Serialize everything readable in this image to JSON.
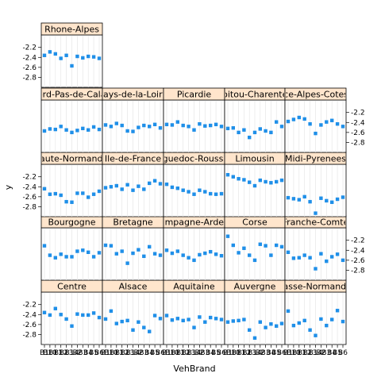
{
  "chart_data": {
    "type": "scatter",
    "xlabel": "VehBrand",
    "ylabel": "y",
    "ylim": [
      -3.0,
      -1.95
    ],
    "yticks": [
      -2.2,
      -2.4,
      -2.6,
      -2.8
    ],
    "ytick_labels": [
      "-2.2",
      "-2.4",
      "-2.6",
      "-2.8"
    ],
    "x": [
      "B1",
      "B10",
      "B11",
      "B12",
      "B13",
      "B14",
      "B2",
      "B3",
      "B4",
      "B5",
      "B6"
    ],
    "x_tick_labels": [
      "B1",
      "B10",
      "B11",
      "B12",
      "B13",
      "B14",
      "B2",
      "B3",
      "B4",
      "B5",
      "B6"
    ],
    "point_color": "#1f8fe8",
    "strip_color": "#ffe5cc",
    "layout": {
      "columns": 5,
      "rows": 5
    },
    "panels": [
      {
        "name": "Centre",
        "values": [
          -2.36,
          -2.41,
          -2.28,
          -2.4,
          -2.49,
          -2.63,
          -2.39,
          -2.41,
          -2.41,
          -2.37,
          -2.46
        ]
      },
      {
        "name": "Alsace",
        "values": [
          -2.49,
          -2.33,
          -2.58,
          -2.54,
          -2.52,
          -2.71,
          -2.55,
          -2.66,
          -2.74,
          -2.42,
          -2.48
        ]
      },
      {
        "name": "Aquitaine",
        "values": [
          -2.42,
          -2.51,
          -2.48,
          -2.52,
          -2.5,
          -2.66,
          -2.45,
          -2.55,
          -2.46,
          -2.48,
          -2.5
        ]
      },
      {
        "name": "Auvergne",
        "values": [
          -2.55,
          -2.53,
          -2.52,
          -2.5,
          -2.71,
          -2.87,
          -2.55,
          -2.66,
          -2.59,
          -2.63,
          -2.58
        ]
      },
      {
        "name": "Basse-Normandie",
        "values": [
          -2.33,
          -2.62,
          -2.57,
          -2.52,
          -2.71,
          -2.82,
          -2.49,
          -2.62,
          -2.5,
          -2.32,
          -2.54
        ]
      },
      {
        "name": "Bourgogne",
        "values": [
          -2.31,
          -2.5,
          -2.55,
          -2.48,
          -2.53,
          -2.53,
          -2.42,
          -2.4,
          -2.44,
          -2.53,
          -2.45
        ]
      },
      {
        "name": "Bretagne",
        "values": [
          -2.3,
          -2.31,
          -2.47,
          -2.42,
          -2.66,
          -2.46,
          -2.39,
          -2.52,
          -2.33,
          -2.47,
          -2.5
        ]
      },
      {
        "name": "Champagne-Ardenne",
        "values": [
          -2.4,
          -2.46,
          -2.42,
          -2.5,
          -2.55,
          -2.6,
          -2.49,
          -2.46,
          -2.43,
          -2.48,
          -2.51
        ]
      },
      {
        "name": "Corse",
        "values": [
          -2.12,
          -2.3,
          -2.45,
          -2.36,
          -2.5,
          -2.6,
          -2.28,
          -2.31,
          -2.5,
          -2.3,
          -2.33
        ]
      },
      {
        "name": "Franche-Comte",
        "values": [
          -2.44,
          -2.56,
          -2.55,
          -2.5,
          -2.55,
          -2.77,
          -2.47,
          -2.62,
          -2.53,
          -2.48,
          -2.6
        ]
      },
      {
        "name": "Haute-Normandie",
        "values": [
          -2.44,
          -2.55,
          -2.54,
          -2.57,
          -2.7,
          -2.71,
          -2.53,
          -2.53,
          -2.61,
          -2.55,
          -2.49
        ]
      },
      {
        "name": "Ile-de-France",
        "values": [
          -2.42,
          -2.4,
          -2.38,
          -2.45,
          -2.36,
          -2.47,
          -2.39,
          -2.45,
          -2.33,
          -2.28,
          -2.34
        ]
      },
      {
        "name": "Languedoc-Roussillon",
        "values": [
          -2.35,
          -2.41,
          -2.43,
          -2.47,
          -2.5,
          -2.55,
          -2.47,
          -2.5,
          -2.54,
          -2.55,
          -2.54
        ]
      },
      {
        "name": "Limousin",
        "values": [
          -2.16,
          -2.2,
          -2.24,
          -2.26,
          -2.31,
          -2.38,
          -2.27,
          -2.3,
          -2.32,
          -2.3,
          -2.27
        ]
      },
      {
        "name": "Midi-Pyrenees",
        "values": [
          -2.62,
          -2.64,
          -2.66,
          -2.6,
          -2.7,
          -2.93,
          -2.63,
          -2.68,
          -2.71,
          -2.65,
          -2.61
        ]
      },
      {
        "name": "Nord-Pas-de-Calais",
        "values": [
          -2.57,
          -2.53,
          -2.54,
          -2.48,
          -2.55,
          -2.6,
          -2.56,
          -2.52,
          -2.55,
          -2.49,
          -2.54
        ]
      },
      {
        "name": "Pays-de-la-Loire",
        "values": [
          -2.45,
          -2.48,
          -2.42,
          -2.46,
          -2.57,
          -2.58,
          -2.5,
          -2.46,
          -2.48,
          -2.44,
          -2.51
        ]
      },
      {
        "name": "Picardie",
        "values": [
          -2.44,
          -2.45,
          -2.39,
          -2.46,
          -2.48,
          -2.55,
          -2.43,
          -2.47,
          -2.46,
          -2.44,
          -2.48
        ]
      },
      {
        "name": "Poitou-Charentes",
        "values": [
          -2.52,
          -2.51,
          -2.6,
          -2.55,
          -2.7,
          -2.6,
          -2.53,
          -2.57,
          -2.6,
          -2.39,
          -2.48
        ]
      },
      {
        "name": "Provence-Alpes-Cotes-Dazur",
        "values": [
          -2.38,
          -2.34,
          -2.3,
          -2.33,
          -2.43,
          -2.62,
          -2.45,
          -2.39,
          -2.36,
          -2.43,
          -2.48
        ]
      },
      {
        "name": "Rhone-Alpes",
        "values": [
          -2.36,
          -2.29,
          -2.33,
          -2.42,
          -2.36,
          -2.57,
          -2.38,
          -2.41,
          -2.38,
          -2.39,
          -2.42
        ]
      }
    ]
  }
}
